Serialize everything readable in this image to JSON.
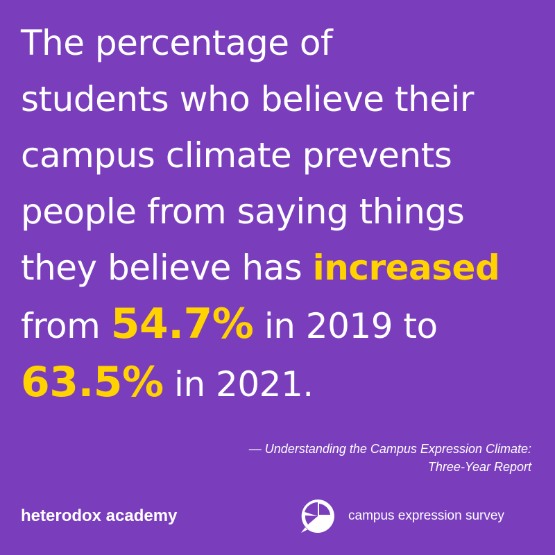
{
  "statement": {
    "lines": [
      [
        {
          "text": "The percentage of"
        }
      ],
      [
        {
          "text": "students who believe their"
        }
      ],
      [
        {
          "text": "campus climate prevents"
        }
      ],
      [
        {
          "text": "people from saying things"
        }
      ],
      [
        {
          "text": "they believe has "
        },
        {
          "text": "increased",
          "highlight": true
        }
      ],
      [
        {
          "text": "from "
        },
        {
          "text": "54.7%",
          "highlight": true,
          "big": true
        },
        {
          "text": " in 2019 to"
        }
      ],
      [
        {
          "text": "63.5%",
          "highlight": true,
          "big": true
        },
        {
          "text": " in 2021."
        }
      ]
    ]
  },
  "citation": {
    "lines": [
      "— Understanding the Campus Expression Climate:",
      "Three-Year Report"
    ]
  },
  "footer": {
    "left_logo": "heterodox academy",
    "right_logo": "campus expression survey"
  }
}
